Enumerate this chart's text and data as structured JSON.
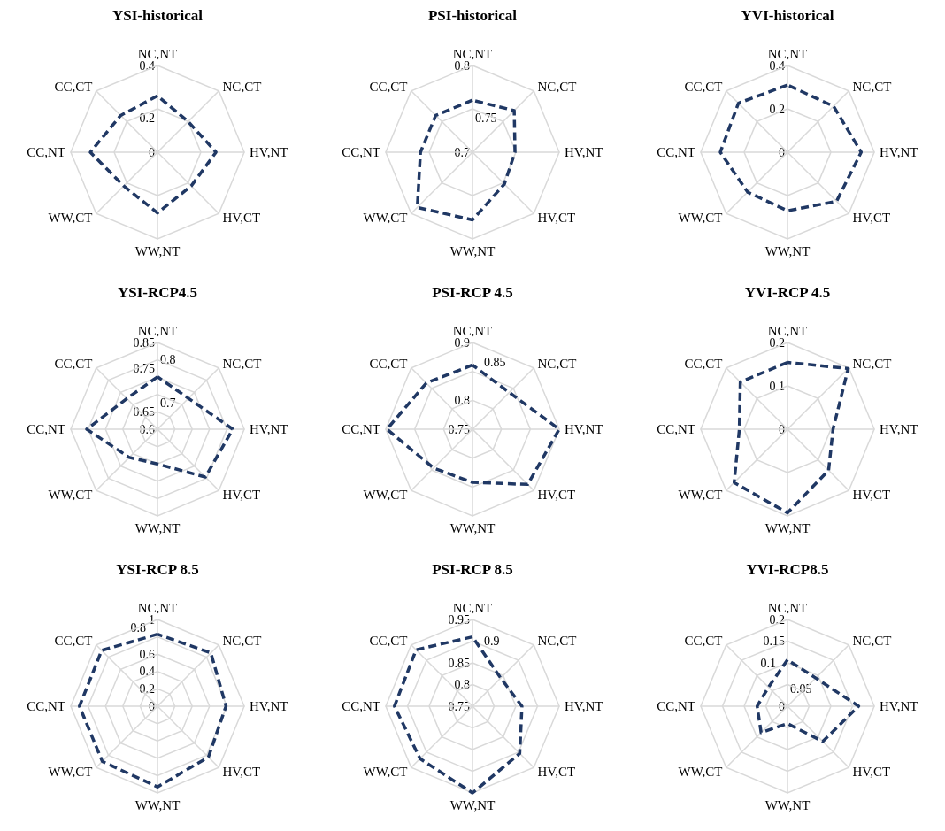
{
  "chart_data": [
    {
      "type": "radar",
      "title": "YSI-historical",
      "categories": [
        "NC,NT",
        "NC,CT",
        "HV,NT",
        "HV,CT",
        "WW,NT",
        "WW,CT",
        "CC,NT",
        "CC,CT"
      ],
      "series": [
        {
          "color": "#203864",
          "values": [
            0.26,
            0.2,
            0.27,
            0.22,
            0.28,
            0.22,
            0.31,
            0.24
          ]
        }
      ],
      "ylim": [
        0,
        0.4
      ],
      "yticks": [
        0,
        0.2,
        0.4
      ],
      "grid": true,
      "line_style": "dashed"
    },
    {
      "type": "radar",
      "title": "PSI-historical",
      "categories": [
        "NC,NT",
        "NC,CT",
        "HV,NT",
        "HV,CT",
        "WW,NT",
        "WW,CT",
        "CC,NT",
        "CC,CT"
      ],
      "series": [
        {
          "color": "#203864",
          "values": [
            0.76,
            0.768,
            0.749,
            0.752,
            0.778,
            0.79,
            0.76,
            0.76
          ]
        }
      ],
      "ylim": [
        0.7,
        0.8
      ],
      "yticks": [
        0.7,
        0.75,
        0.8
      ],
      "grid": true,
      "line_style": "dashed"
    },
    {
      "type": "radar",
      "title": "YVI-historical",
      "categories": [
        "NC,NT",
        "NC,CT",
        "HV,NT",
        "HV,CT",
        "WW,NT",
        "WW,CT",
        "CC,NT",
        "CC,CT"
      ],
      "series": [
        {
          "color": "#203864",
          "values": [
            0.31,
            0.3,
            0.34,
            0.32,
            0.27,
            0.26,
            0.31,
            0.32
          ]
        }
      ],
      "ylim": [
        0,
        0.4
      ],
      "yticks": [
        0,
        0.2,
        0.4
      ],
      "grid": true,
      "line_style": "dashed"
    },
    {
      "type": "radar",
      "title": "YSI-RCP4.5",
      "categories": [
        "NC,NT",
        "NC,CT",
        "HV,NT",
        "HV,CT",
        "WW,NT",
        "WW,CT",
        "CC,NT",
        "CC,CT"
      ],
      "series": [
        {
          "color": "#203864",
          "values": [
            0.751,
            0.726,
            0.817,
            0.795,
            0.7,
            0.715,
            0.804,
            0.725
          ]
        }
      ],
      "ylim": [
        0.6,
        0.85
      ],
      "yticks": [
        0.6,
        0.65,
        0.7,
        0.75,
        0.8,
        0.85
      ],
      "grid": true,
      "line_style": "dashed"
    },
    {
      "type": "radar",
      "title": "PSI-RCP 4.5",
      "categories": [
        "NC,NT",
        "NC,CT",
        "HV,NT",
        "HV,CT",
        "WW,NT",
        "WW,CT",
        "CC,NT",
        "CC,CT"
      ],
      "series": [
        {
          "color": "#203864",
          "values": [
            0.861,
            0.84,
            0.9,
            0.885,
            0.842,
            0.845,
            0.898,
            0.863
          ]
        }
      ],
      "ylim": [
        0.75,
        0.9
      ],
      "yticks": [
        0.75,
        0.8,
        0.85,
        0.9
      ],
      "grid": true,
      "line_style": "dashed"
    },
    {
      "type": "radar",
      "title": "YVI-RCP 4.5",
      "categories": [
        "NC,NT",
        "NC,CT",
        "HV,NT",
        "HV,CT",
        "WW,NT",
        "WW,CT",
        "CC,NT",
        "CC,CT"
      ],
      "series": [
        {
          "color": "#203864",
          "values": [
            0.154,
            0.198,
            0.105,
            0.134,
            0.193,
            0.174,
            0.111,
            0.154
          ]
        }
      ],
      "ylim": [
        0,
        0.2
      ],
      "yticks": [
        0,
        0.1,
        0.2
      ],
      "grid": true,
      "line_style": "dashed"
    },
    {
      "type": "radar",
      "title": "YSI-RCP 8.5",
      "categories": [
        "NC,NT",
        "NC,CT",
        "HV,NT",
        "HV,CT",
        "WW,NT",
        "WW,CT",
        "CC,NT",
        "CC,CT"
      ],
      "series": [
        {
          "color": "#203864",
          "values": [
            0.83,
            0.87,
            0.79,
            0.83,
            0.93,
            0.9,
            0.9,
            0.91
          ]
        }
      ],
      "ylim": [
        0,
        1
      ],
      "yticks": [
        0,
        0.2,
        0.4,
        0.6,
        0.8,
        1
      ],
      "grid": true,
      "line_style": "dashed"
    },
    {
      "type": "radar",
      "title": "PSI-RCP 8.5",
      "categories": [
        "NC,NT",
        "NC,CT",
        "HV,NT",
        "HV,CT",
        "WW,NT",
        "WW,CT",
        "CC,NT",
        "CC,CT"
      ],
      "series": [
        {
          "color": "#203864",
          "values": [
            0.91,
            0.842,
            0.864,
            0.904,
            0.95,
            0.921,
            0.93,
            0.934
          ]
        }
      ],
      "ylim": [
        0.75,
        0.95
      ],
      "yticks": [
        0.75,
        0.8,
        0.85,
        0.9,
        0.95
      ],
      "grid": true,
      "line_style": "dashed"
    },
    {
      "type": "radar",
      "title": "YVI-RCP8.5",
      "categories": [
        "NC,NT",
        "NC,CT",
        "HV,NT",
        "HV,CT",
        "WW,NT",
        "WW,CT",
        "CC,NT",
        "CC,CT"
      ],
      "series": [
        {
          "color": "#203864",
          "values": [
            0.107,
            0.092,
            0.164,
            0.115,
            0.04,
            0.086,
            0.07,
            0.062
          ]
        }
      ],
      "ylim": [
        0,
        0.2
      ],
      "yticks": [
        0,
        0.05,
        0.1,
        0.15,
        0.2
      ],
      "grid": true,
      "line_style": "dashed"
    }
  ]
}
